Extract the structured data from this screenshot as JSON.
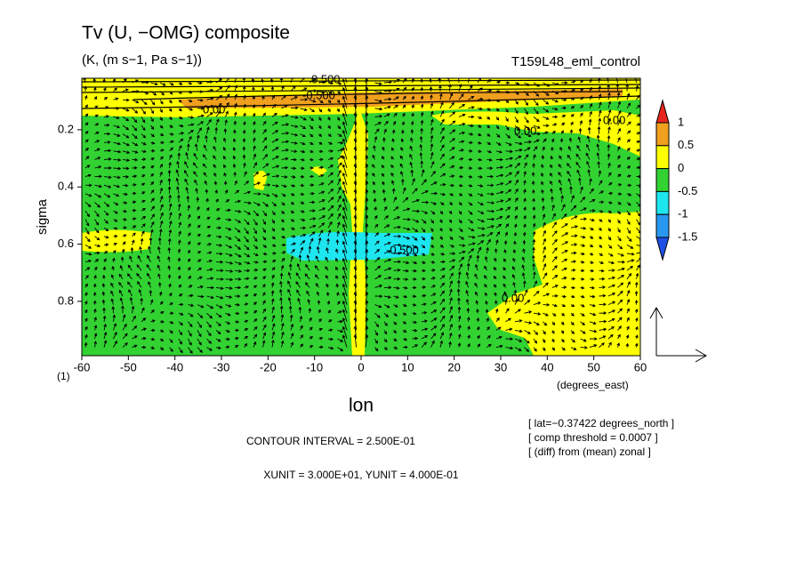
{
  "chart_data": {
    "type": "contour",
    "title": "Tv (U, −OMG) composite",
    "subtitle": "(K, (m s−1, Pa s−1))",
    "run_label": "T159L48_eml_control",
    "x_label": "lon",
    "x_units": "(degrees_east)",
    "y_label": "sigma",
    "y_bottom_label": "(1)",
    "xlim": [
      -60,
      60
    ],
    "xticks": [
      -60,
      -50,
      -40,
      -30,
      -20,
      -10,
      0,
      10,
      20,
      30,
      40,
      50,
      60
    ],
    "ylim": [
      0.99,
      0.02
    ],
    "yticks": [
      0.2,
      0.4,
      0.6,
      0.8
    ],
    "colorbar": {
      "levels": [
        1,
        0.5,
        0,
        -0.5,
        -1,
        -1.5
      ],
      "colors": [
        "#e8251e",
        "#f0a01e",
        "#ffff00",
        "#32d232",
        "#1ee6f0",
        "#2898f0",
        "#1e50e6"
      ]
    },
    "contour_labels": [
      "0.00",
      "-0.500",
      "0.500"
    ],
    "contour_interval": "CONTOUR INTERVAL = 2.500E-01",
    "units_note": "XUNIT = 3.000E+01, YUNIT = 4.000E-01",
    "info": [
      "[ lat=−0.37422 degrees_north ]",
      "[ comp threshold = 0.0007 ]",
      "[ (diff) from (mean) zonal ]"
    ]
  }
}
